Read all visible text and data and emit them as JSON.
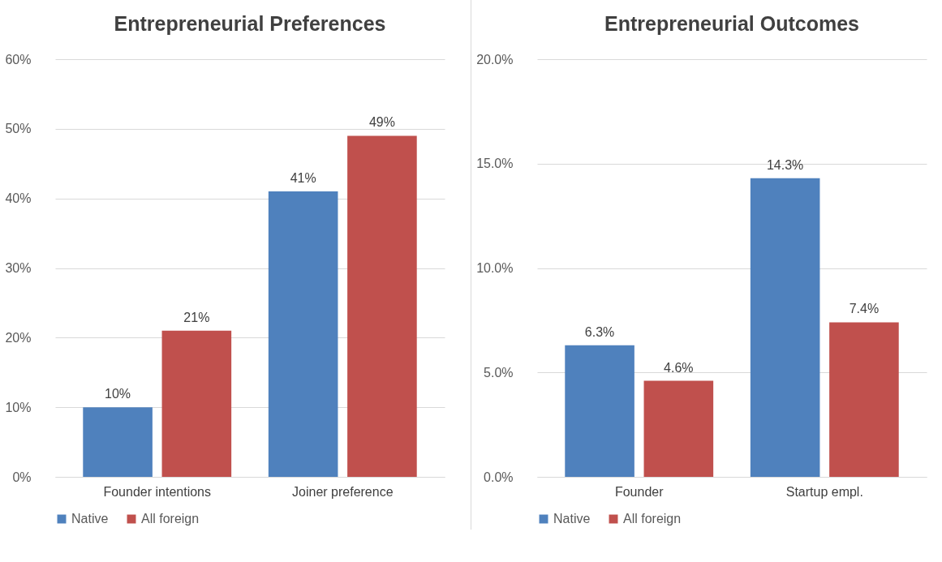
{
  "chart_data": [
    {
      "type": "bar",
      "title": "Entrepreneurial Preferences",
      "categories": [
        "Founder intentions",
        "Joiner preference"
      ],
      "series": [
        {
          "name": "Native",
          "color": "#4f81bd",
          "values": [
            10,
            41
          ],
          "value_labels": [
            "10%",
            "41%"
          ]
        },
        {
          "name": "All foreign",
          "color": "#c0504d",
          "values": [
            21,
            49
          ],
          "value_labels": [
            "21%",
            "49%"
          ]
        }
      ],
      "ylim": [
        0,
        60
      ],
      "yticks": [
        {
          "value": 0,
          "label": "0%"
        },
        {
          "value": 10,
          "label": "10%"
        },
        {
          "value": 20,
          "label": "20%"
        },
        {
          "value": 30,
          "label": "30%"
        },
        {
          "value": 40,
          "label": "40%"
        },
        {
          "value": 50,
          "label": "50%"
        },
        {
          "value": 60,
          "label": "60%"
        }
      ],
      "grid": "y",
      "legend": "bottom"
    },
    {
      "type": "bar",
      "title": "Entrepreneurial Outcomes",
      "categories": [
        "Founder",
        "Startup empl."
      ],
      "series": [
        {
          "name": "Native",
          "color": "#4f81bd",
          "values": [
            6.3,
            14.3
          ],
          "value_labels": [
            "6.3%",
            "14.3%"
          ]
        },
        {
          "name": "All foreign",
          "color": "#c0504d",
          "values": [
            4.6,
            7.4
          ],
          "value_labels": [
            "4.6%",
            "7.4%"
          ]
        }
      ],
      "ylim": [
        0,
        20
      ],
      "yticks": [
        {
          "value": 0,
          "label": "0.0%"
        },
        {
          "value": 5,
          "label": "5.0%"
        },
        {
          "value": 10,
          "label": "10.0%"
        },
        {
          "value": 15,
          "label": "15.0%"
        },
        {
          "value": 20,
          "label": "20.0%"
        }
      ],
      "grid": "y",
      "legend": "bottom"
    }
  ]
}
